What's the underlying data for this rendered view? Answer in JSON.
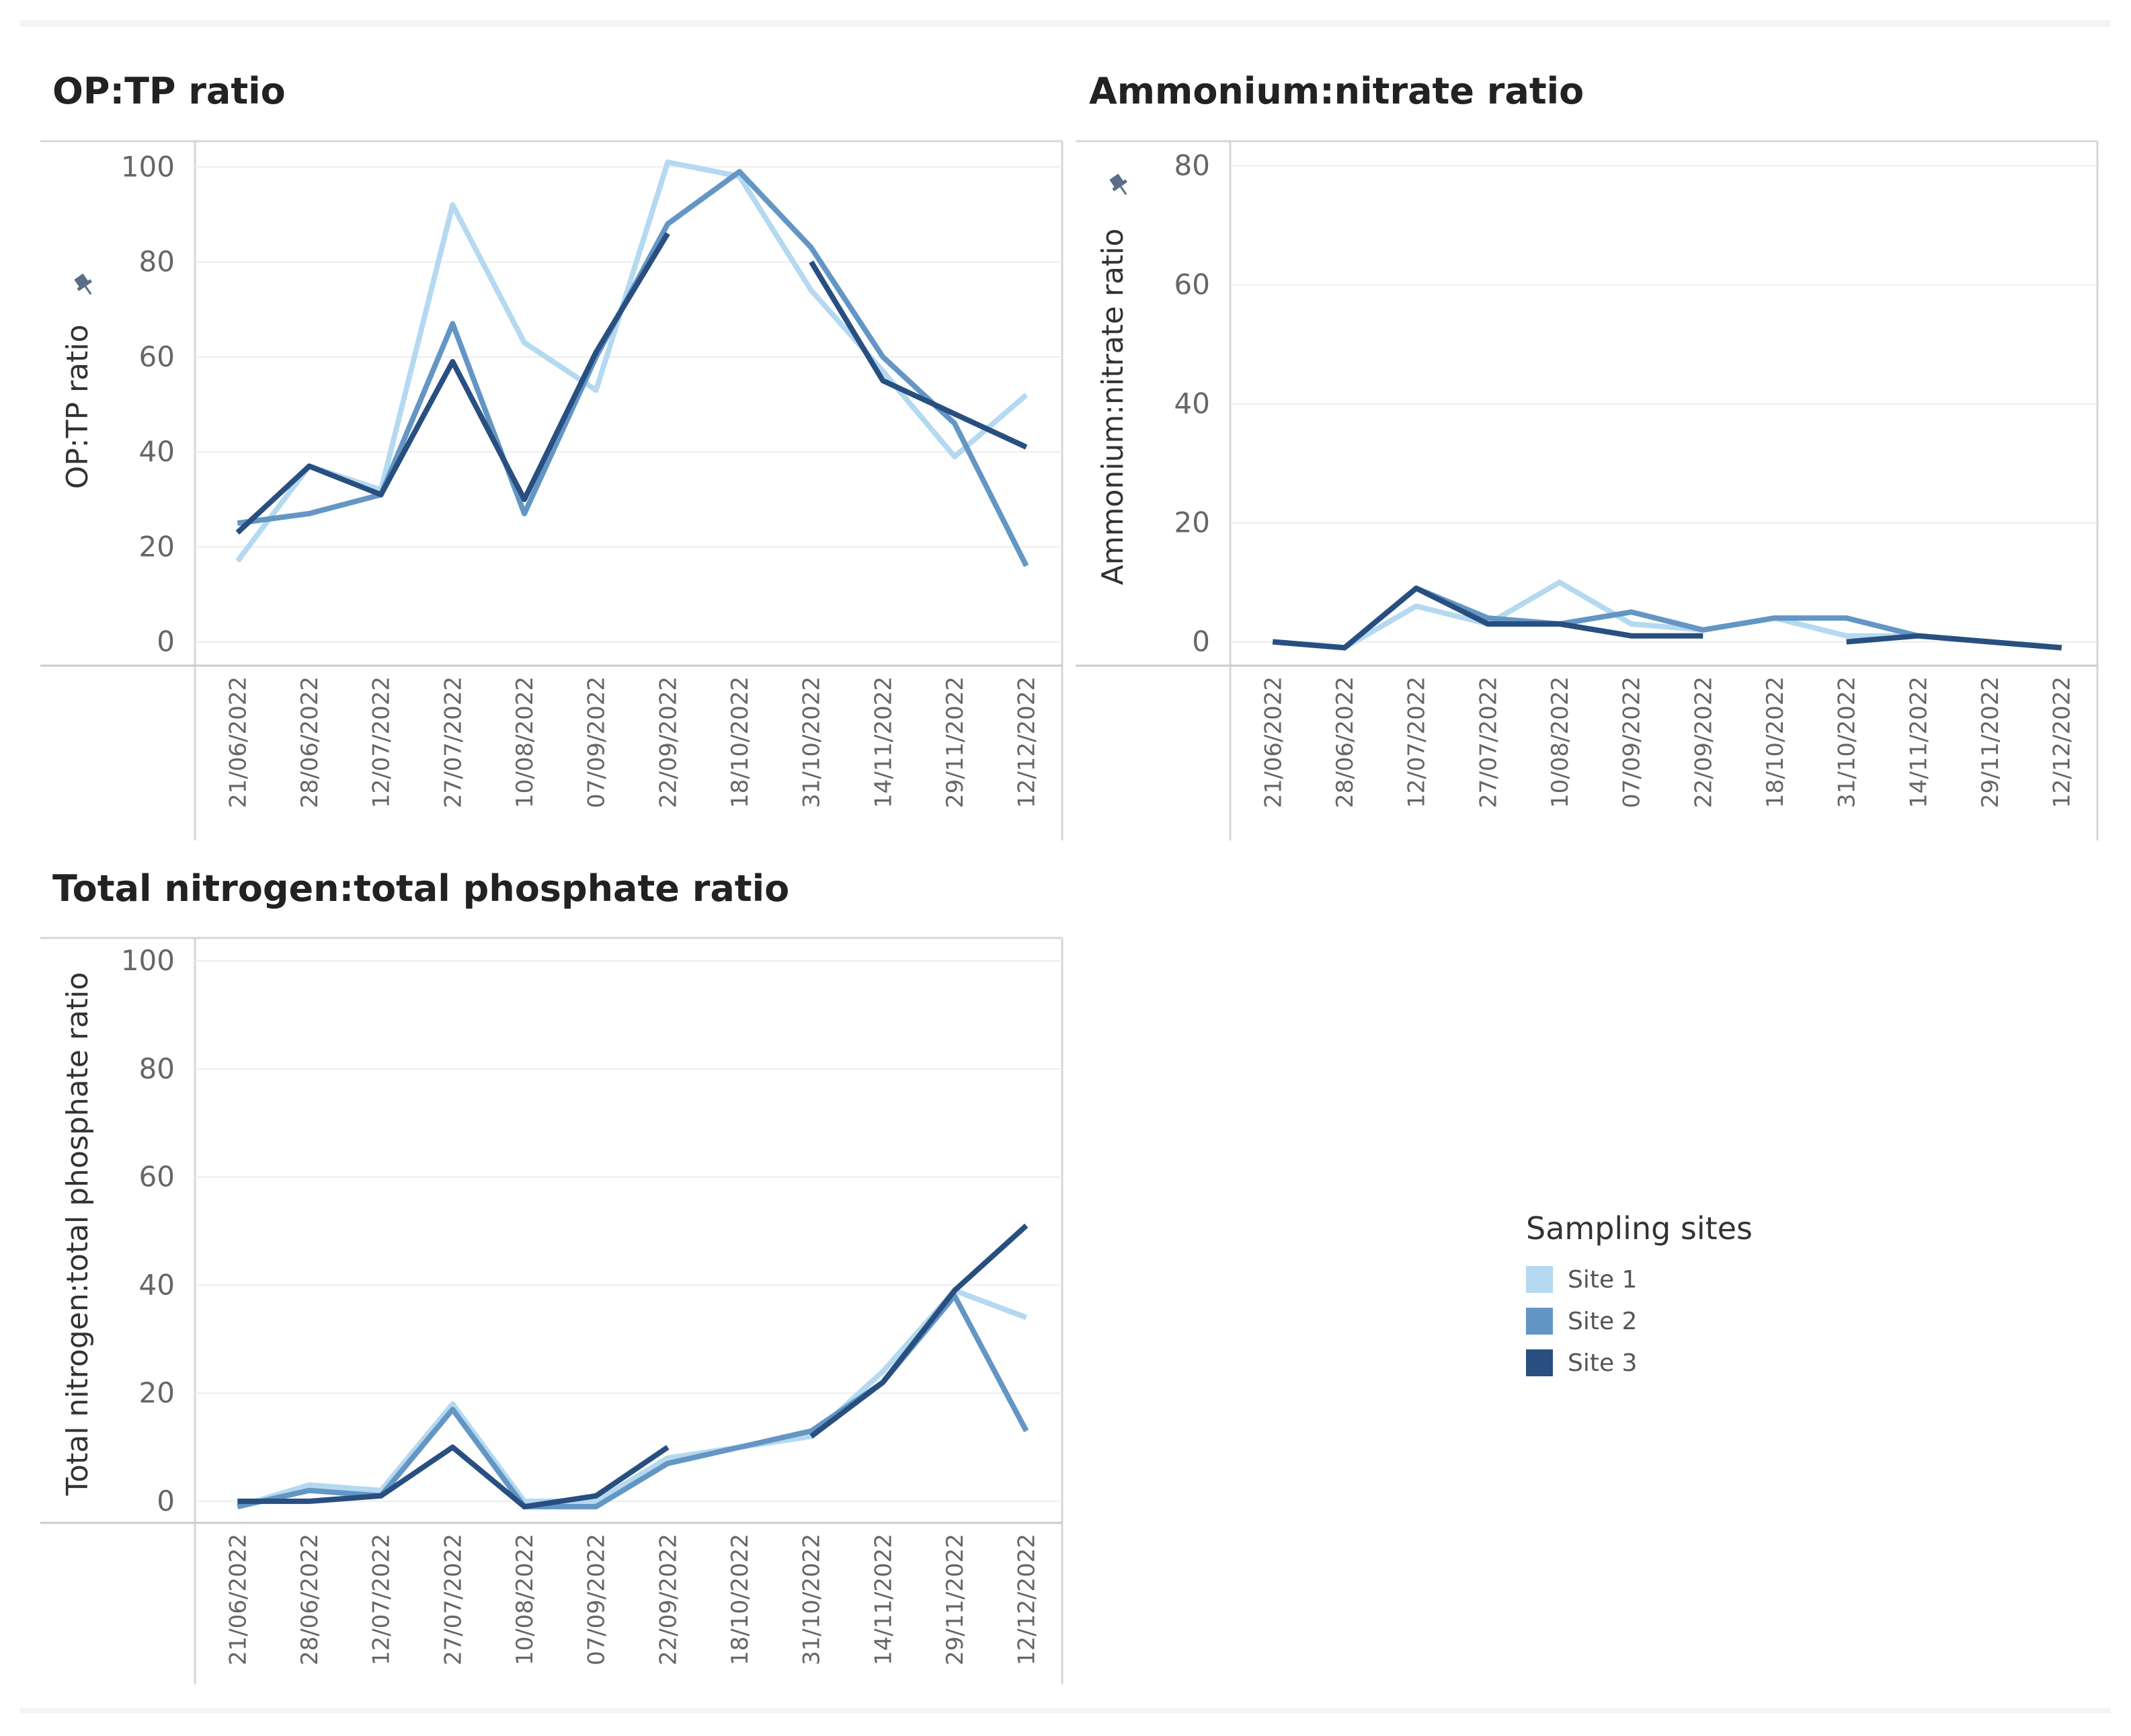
{
  "legend": {
    "title": "Sampling sites",
    "items": [
      {
        "label": "Site 1",
        "color": "#b4d9f0"
      },
      {
        "label": "Site 2",
        "color": "#6396c4"
      },
      {
        "label": "Site 3",
        "color": "#284f80"
      }
    ]
  },
  "pin_icon": "pin-icon",
  "chart_data": [
    {
      "type": "line",
      "title": "OP:TP ratio",
      "ylabel": "OP:TP ratio",
      "xlabel": "",
      "ylim": [
        -5,
        104
      ],
      "yticks": [
        0,
        20,
        40,
        60,
        80,
        100
      ],
      "show_pin": true,
      "categories": [
        "21/06/2022",
        "28/06/2022",
        "12/07/2022",
        "27/07/2022",
        "10/08/2022",
        "07/09/2022",
        "22/09/2022",
        "18/10/2022",
        "31/10/2022",
        "14/11/2022",
        "29/11/2022",
        "12/12/2022"
      ],
      "series": [
        {
          "name": "Site 1",
          "values": [
            17,
            37,
            32,
            92,
            63,
            53,
            101,
            98,
            74,
            57,
            39,
            52
          ]
        },
        {
          "name": "Site 2",
          "values": [
            25,
            27,
            31,
            67,
            27,
            60,
            88,
            99,
            83,
            60,
            46,
            16
          ]
        },
        {
          "name": "Site 3",
          "values": [
            23,
            37,
            31,
            59,
            30,
            61,
            86,
            null,
            80,
            55,
            48,
            41
          ]
        }
      ]
    },
    {
      "type": "line",
      "title": "Ammonium:nitrate ratio",
      "ylabel": "Ammonium:nitrate ratio",
      "xlabel": "",
      "ylim": [
        -4,
        83
      ],
      "yticks": [
        0,
        20,
        40,
        60,
        80
      ],
      "show_pin": true,
      "categories": [
        "21/06/2022",
        "28/06/2022",
        "12/07/2022",
        "27/07/2022",
        "10/08/2022",
        "07/09/2022",
        "22/09/2022",
        "18/10/2022",
        "31/10/2022",
        "14/11/2022",
        "29/11/2022",
        "12/12/2022"
      ],
      "series": [
        {
          "name": "Site 1",
          "values": [
            0,
            -1,
            6,
            3,
            10,
            3,
            2,
            4,
            1,
            1,
            0,
            -1
          ]
        },
        {
          "name": "Site 2",
          "values": [
            0,
            -1,
            9,
            4,
            3,
            5,
            2,
            4,
            4,
            1,
            0,
            -1
          ]
        },
        {
          "name": "Site 3",
          "values": [
            0,
            -1,
            9,
            3,
            3,
            1,
            1,
            null,
            0,
            1,
            0,
            -1
          ]
        }
      ]
    },
    {
      "type": "line",
      "title": "Total nitrogen:total phosphate ratio",
      "ylabel": "Total nitrogen:total phosphate ratio",
      "xlabel": "",
      "ylim": [
        -4,
        103
      ],
      "yticks": [
        0,
        20,
        40,
        60,
        80,
        100
      ],
      "show_pin": false,
      "categories": [
        "21/06/2022",
        "28/06/2022",
        "12/07/2022",
        "27/07/2022",
        "10/08/2022",
        "07/09/2022",
        "22/09/2022",
        "18/10/2022",
        "31/10/2022",
        "14/11/2022",
        "29/11/2022",
        "12/12/2022"
      ],
      "series": [
        {
          "name": "Site 1",
          "values": [
            -1,
            3,
            2,
            18,
            0,
            0,
            8,
            10,
            12,
            24,
            39,
            34
          ]
        },
        {
          "name": "Site 2",
          "values": [
            -1,
            2,
            1,
            17,
            -1,
            -1,
            7,
            10,
            13,
            22,
            38,
            13
          ]
        },
        {
          "name": "Site 3",
          "values": [
            0,
            0,
            1,
            10,
            -1,
            1,
            10,
            null,
            12,
            22,
            39,
            51
          ]
        }
      ]
    }
  ]
}
